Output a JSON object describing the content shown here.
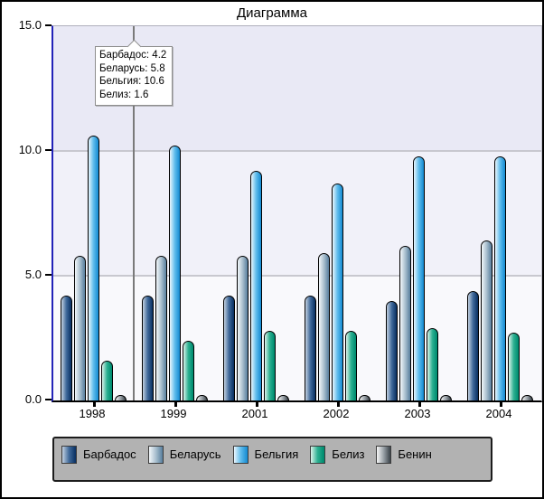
{
  "window": {
    "title": "Диаграмма"
  },
  "chart_data": {
    "type": "bar",
    "title": "Диаграмма",
    "categories": [
      "1998",
      "1999",
      "2001",
      "2002",
      "2003",
      "2004"
    ],
    "series": [
      {
        "name": "Барбадос",
        "values": [
          4.2,
          4.2,
          4.2,
          4.2,
          4.0,
          4.4
        ],
        "gradient": [
          "#c3d1e0",
          "#3f699a",
          "#0d3466"
        ]
      },
      {
        "name": "Беларусь",
        "values": [
          5.8,
          5.8,
          5.8,
          5.9,
          6.2,
          6.4
        ],
        "gradient": [
          "#f3f7fa",
          "#a9bfce",
          "#5f84a2"
        ]
      },
      {
        "name": "Бельгия",
        "values": [
          10.6,
          10.2,
          9.2,
          8.7,
          9.8,
          9.8
        ],
        "gradient": [
          "#e9f6fd",
          "#5fbcec",
          "#1a8ed4"
        ]
      },
      {
        "name": "Белиз",
        "values": [
          1.6,
          2.4,
          2.8,
          2.8,
          2.9,
          2.7
        ],
        "gradient": [
          "#dcf3ea",
          "#2cb091",
          "#008c70"
        ]
      },
      {
        "name": "Бенин",
        "values": [
          0.2,
          0.2,
          0.2,
          0.2,
          0.2,
          0.2
        ],
        "gradient": [
          "#f7f7f7",
          "#99a1a7",
          "#424a51"
        ]
      }
    ],
    "ylim": [
      0,
      15
    ],
    "ytick_labels": [
      "15.0",
      "10.0",
      "5.0",
      "0.0"
    ],
    "grid": "horizontal gridlines at 5.0 and 10.0",
    "legend_position": "bottom",
    "axis_colors": {
      "y_axis": "#2222b8",
      "x_axis": "#000000",
      "gridline": "#c8c8cf"
    },
    "plot_band_colors": [
      "#e9e9f5",
      "#f1f1f9",
      "#f9f9fc"
    ]
  },
  "tooltip": {
    "lines": [
      "Барбадос: 4.2",
      "Беларусь: 5.8",
      "Бельгия: 10.6",
      "Белиз: 1.6"
    ]
  },
  "hover_line": {
    "position_between": "1998 и 1999",
    "color": "#7a7a7a"
  }
}
